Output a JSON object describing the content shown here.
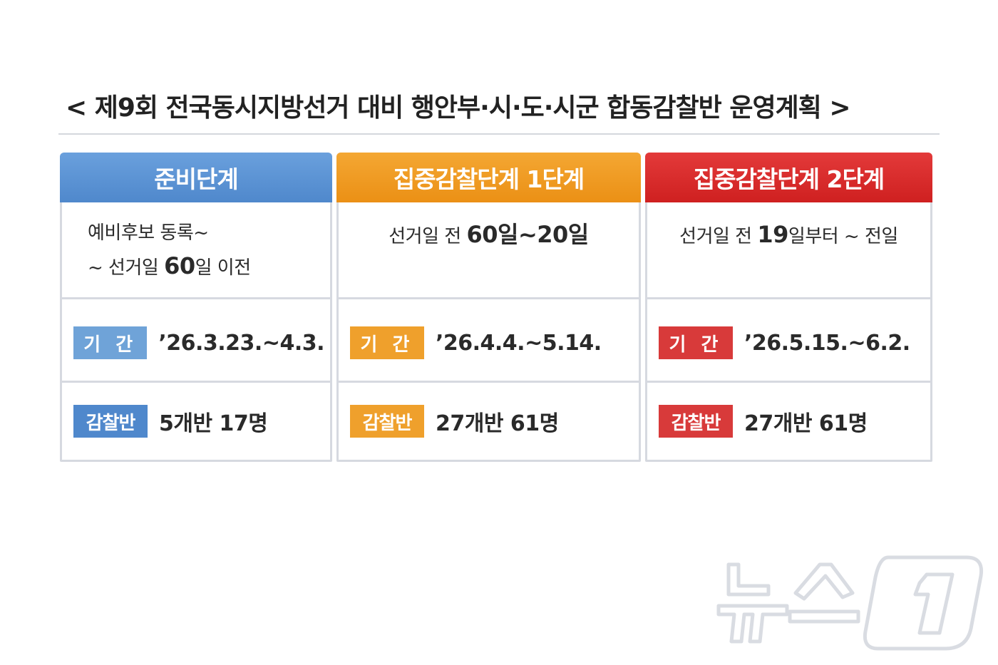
{
  "title": "< 제9회 전국동시지방선거 대비 행안부·시·도·시군 합동감찰반 운영계획 >",
  "columns": [
    {
      "header": "준비단계",
      "desc_line1": "예비후보 동록~",
      "desc_line2_pre": "~ 선거일 ",
      "desc_line2_big": "60",
      "desc_line2_post": "일 이전",
      "period_tag": "기 간",
      "period_value": "’26.3.23.~4.3.",
      "team_tag": "감찰반",
      "team_value": "5개반 17명"
    },
    {
      "header": "집중감찰단계 1단계",
      "desc_pre": "선거일 전 ",
      "desc_big": "60일~20일",
      "period_tag": "기 간",
      "period_value": "’26.4.4.~5.14.",
      "team_tag": "감찰반",
      "team_value": "27개반 61명"
    },
    {
      "header": "집중감찰단계 2단계",
      "desc_pre": "선거일 전 ",
      "desc_big": "19",
      "desc_post": "일부터 ~ 전일",
      "period_tag": "기 간",
      "period_value": "’26.5.15.~6.2.",
      "team_tag": "감찰반",
      "team_value": "27개반 61명"
    }
  ],
  "watermark": "뉴스1",
  "colors": {
    "stage_prep": "#4f88cc",
    "stage_focus1": "#eb9015",
    "stage_focus2": "#cf2020"
  }
}
